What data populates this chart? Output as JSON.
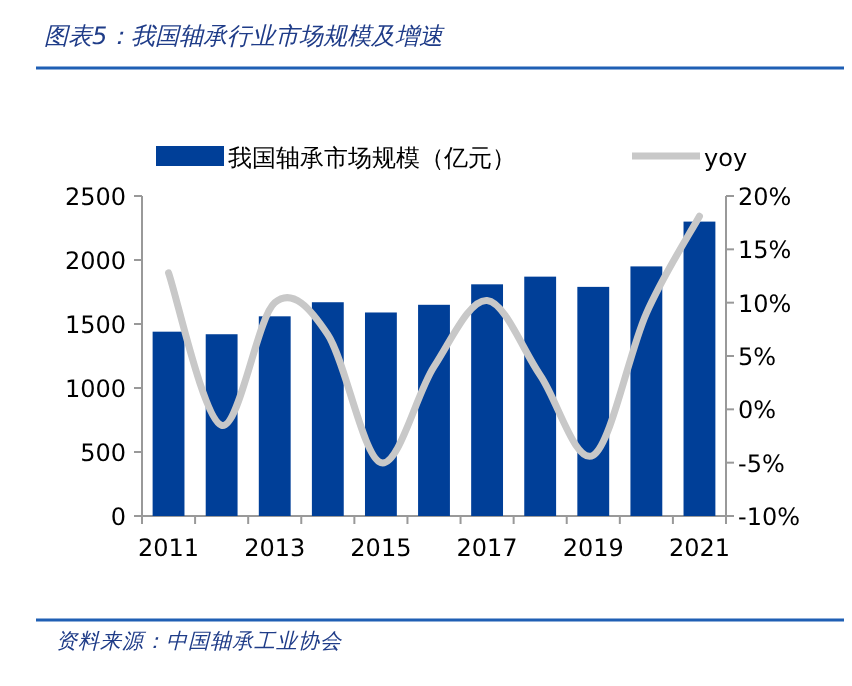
{
  "chart_data": {
    "type": "bar",
    "title": "图表5：我国轴承行业市场规模及增速",
    "categories": [
      "2011",
      null,
      "2013",
      null,
      "2015",
      null,
      "2017",
      null,
      "2019",
      null,
      "2021"
    ],
    "series": [
      {
        "name": "我国轴承市场规模（亿元）",
        "color": "#003f98",
        "values": [
          1440,
          1420,
          1560,
          1670,
          1590,
          1650,
          1810,
          1870,
          1790,
          1950,
          2300
        ]
      },
      {
        "name": "yoy",
        "type": "line",
        "axis": "y2",
        "color": "#c8c8c8",
        "values": [
          12.8,
          -1.5,
          10,
          7,
          -5,
          4,
          10.2,
          3.2,
          -4.3,
          9,
          18.1
        ]
      }
    ],
    "ylim": [
      0,
      2500
    ],
    "yticks": [
      0,
      500,
      1000,
      1500,
      2000,
      2500
    ],
    "y2lim": [
      -10,
      20
    ],
    "y2ticks": [
      {
        "value": -10,
        "label": "-10%"
      },
      {
        "value": -5,
        "label": "-5%"
      },
      {
        "value": 0,
        "label": "0%"
      },
      {
        "value": 5,
        "label": "5%"
      },
      {
        "value": 10,
        "label": "10%"
      },
      {
        "value": 15,
        "label": "15%"
      },
      {
        "value": 20,
        "label": "20%"
      }
    ],
    "legend": "top",
    "annotations": [
      "资料来源：中国轴承工业协会"
    ]
  }
}
